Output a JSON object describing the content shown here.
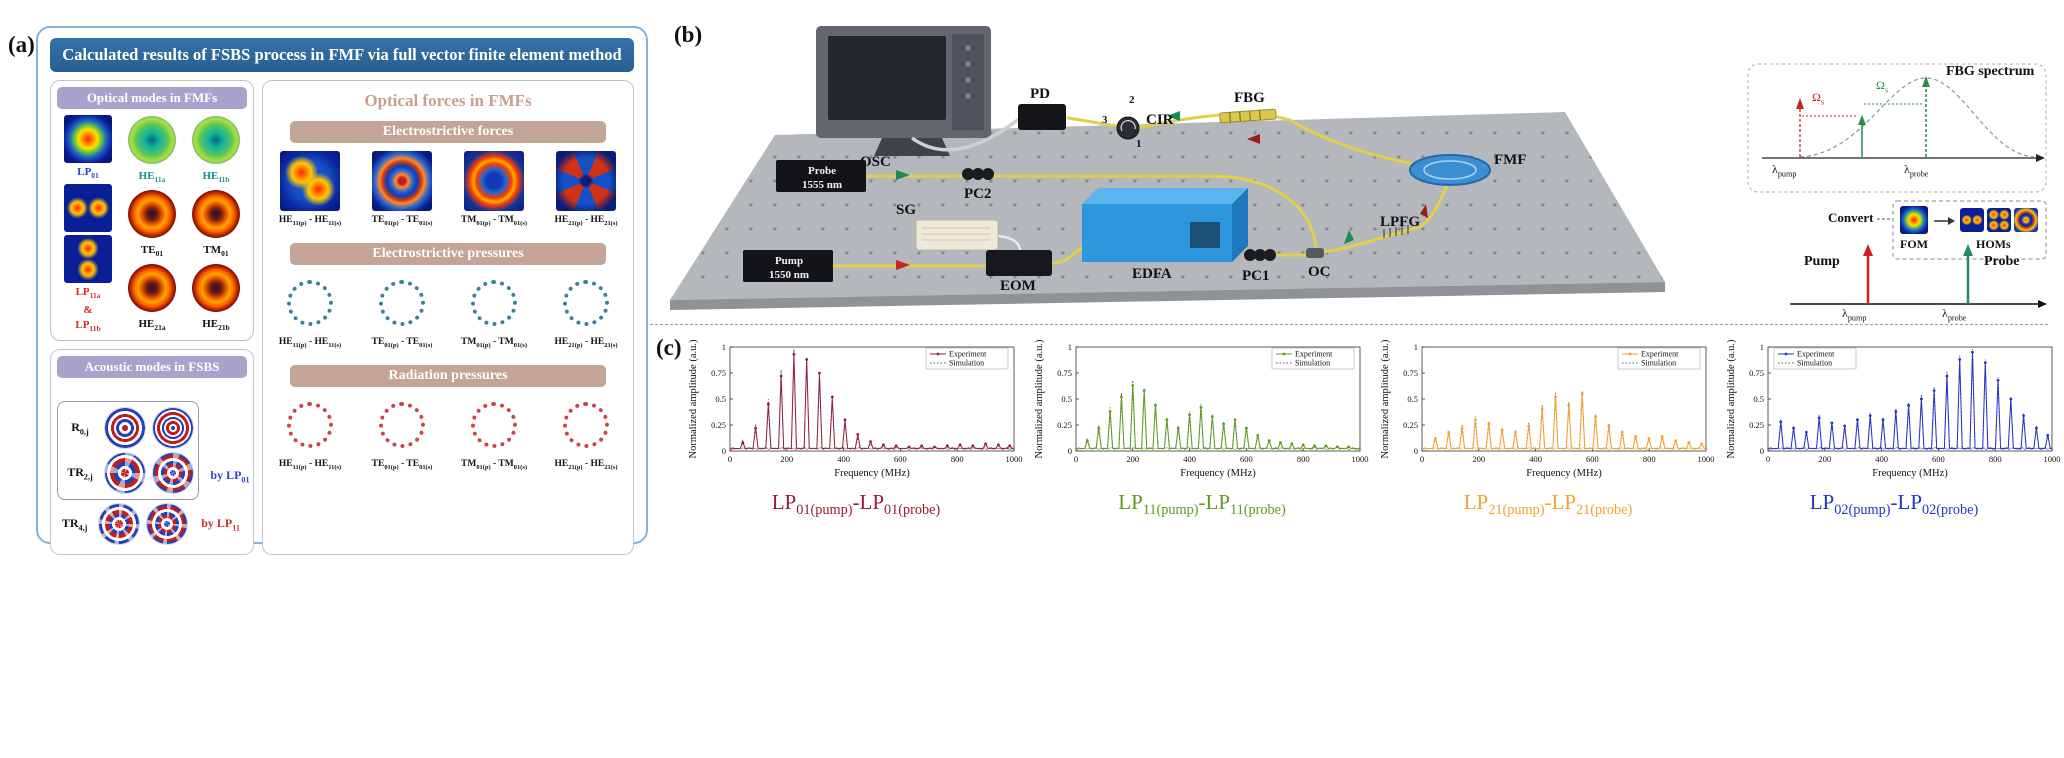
{
  "panel_a": {
    "label": "(a)",
    "title": "Calculated results of FSBS process in FMF via full vector finite element method",
    "optical_modes": {
      "header": "Optical modes in FMFs",
      "lp01": "LP~01~",
      "he11a": "HE~11a~",
      "he11b": "HE~11b~",
      "lp11a": "LP~11a~",
      "amp": "&",
      "lp11b": "LP~11b~",
      "te01": "TE~01~",
      "tm01": "TM~01~",
      "he21a": "HE~21a~",
      "he21b": "HE~21b~"
    },
    "acoustic_modes": {
      "header": "Acoustic modes in FSBS",
      "r0": "R~0,j~",
      "tr2": "TR~2,j~",
      "tr4": "TR~4,j~",
      "by_lp01": "by LP~01~",
      "by_lp11": "by LP~11~"
    },
    "optical_forces": {
      "header": "Optical forces in FMFs",
      "sections": [
        {
          "title": "Electrostrictive forces",
          "items": [
            "HE~11(p)~ - HE~11(s)~",
            "TE~01(p)~ - TE~01(s)~",
            "TM~01(p)~ - TM~01(s)~",
            "HE~21(p)~ - HE~21(s)~"
          ]
        },
        {
          "title": "Electrostrictive pressures",
          "items": [
            "HE~11(p)~ - HE~11(s)~",
            "TE~01(p)~ - TE~01(s)~",
            "TM~01(p)~ - TM~01(s)~",
            "HE~21(p)~ - HE~21(s)~"
          ]
        },
        {
          "title": "Radiation pressures",
          "items": [
            "HE~11(p)~ - HE~11(s)~",
            "TE~01(p)~ - TE~01(s)~",
            "TM~01(p)~ - TM~01(s)~",
            "HE~21(p)~ - HE~21(s)~"
          ]
        }
      ]
    }
  },
  "panel_b": {
    "label": "(b)",
    "components": {
      "osc": "OSC",
      "pd": "PD",
      "cir": "CIR",
      "fbg": "FBG",
      "fmf": "FMF",
      "probe": "Probe",
      "probe_wl": "1555 nm",
      "pc2": "PC2",
      "sg": "SG",
      "eom": "EOM",
      "edfa": "EDFA",
      "pc1": "PC1",
      "oc": "OC",
      "lpfg": "LPFG",
      "pump": "Pump",
      "pump_wl": "1550 nm",
      "cir_ports": {
        "p1": "1",
        "p2": "2",
        "p3": "3"
      }
    },
    "fbg_inset": {
      "title": "FBG spectrum",
      "omega1": "Ω~s~",
      "omega2": "Ω~s~",
      "lambda_pump": "λ~pump~",
      "lambda_probe": "λ~probe~"
    },
    "convert_inset": {
      "convert": "Convert",
      "fom": "FOM",
      "homs": "HOMs"
    },
    "axis_inset": {
      "pump": "Pump",
      "probe": "Probe",
      "lambda_pump": "λ~pump~",
      "lambda_probe": "λ~probe~"
    }
  },
  "panel_c": {
    "label": "(c)",
    "captions": [
      "LP~01(pump)~-LP~01(probe)~",
      "LP~11(pump)~-LP~11(probe)~",
      "LP~21(pump)~-LP~21(probe)~",
      "LP~02(pump)~-LP~02(probe)~"
    ],
    "caption_colors": [
      "#9b1b30",
      "#5f9a1e",
      "#f0a330",
      "#2433c8"
    ]
  },
  "chart_data": [
    {
      "type": "line",
      "title": "LP01(pump)-LP01(probe)",
      "xlabel": "Frequency (MHz)",
      "ylabel": "Normalized amplitude (a.u.)",
      "xlim": [
        0,
        1000
      ],
      "ylim": [
        0,
        1
      ],
      "xticks": [
        0,
        200,
        400,
        600,
        800,
        1000
      ],
      "yticks": [
        0,
        0.25,
        0.5,
        0.75,
        1
      ],
      "legend": [
        "Experiment",
        "Simulation"
      ],
      "legend_pos": "right",
      "color": "#8e2439",
      "sim_color": "#50506e",
      "series": [
        {
          "name": "Experiment",
          "peaks": [
            [
              45,
              0.08
            ],
            [
              90,
              0.22
            ],
            [
              135,
              0.45
            ],
            [
              180,
              0.72
            ],
            [
              225,
              0.93
            ],
            [
              270,
              0.88
            ],
            [
              315,
              0.75
            ],
            [
              360,
              0.52
            ],
            [
              405,
              0.3
            ],
            [
              450,
              0.16
            ],
            [
              495,
              0.09
            ],
            [
              540,
              0.06
            ],
            [
              585,
              0.05
            ],
            [
              630,
              0.04
            ],
            [
              675,
              0.05
            ],
            [
              720,
              0.04
            ],
            [
              765,
              0.05
            ],
            [
              810,
              0.06
            ],
            [
              855,
              0.05
            ],
            [
              900,
              0.07
            ],
            [
              945,
              0.06
            ],
            [
              985,
              0.05
            ]
          ]
        },
        {
          "name": "Simulation",
          "peaks": [
            [
              45,
              0.1
            ],
            [
              90,
              0.26
            ],
            [
              135,
              0.5
            ],
            [
              180,
              0.78
            ],
            [
              225,
              0.98
            ],
            [
              270,
              0.9
            ],
            [
              315,
              0.7
            ],
            [
              360,
              0.47
            ],
            [
              405,
              0.27
            ],
            [
              450,
              0.13
            ],
            [
              495,
              0.07
            ],
            [
              540,
              0.05
            ],
            [
              585,
              0.04
            ],
            [
              630,
              0.04
            ],
            [
              675,
              0.04
            ],
            [
              720,
              0.04
            ],
            [
              765,
              0.04
            ],
            [
              810,
              0.05
            ],
            [
              855,
              0.04
            ],
            [
              900,
              0.06
            ],
            [
              945,
              0.05
            ]
          ]
        }
      ]
    },
    {
      "type": "line",
      "title": "LP11(pump)-LP11(probe)",
      "xlabel": "Frequency (MHz)",
      "ylabel": "Normalized amplitude (a.u.)",
      "xlim": [
        0,
        1000
      ],
      "ylim": [
        0,
        1
      ],
      "xticks": [
        0,
        200,
        400,
        600,
        800,
        1000
      ],
      "yticks": [
        0,
        0.25,
        0.5,
        0.75,
        1
      ],
      "legend": [
        "Experiment",
        "Simulation"
      ],
      "legend_pos": "right",
      "color": "#5f9a1e",
      "sim_color": "#50506e",
      "series": [
        {
          "name": "Experiment",
          "peaks": [
            [
              40,
              0.1
            ],
            [
              80,
              0.22
            ],
            [
              120,
              0.38
            ],
            [
              160,
              0.52
            ],
            [
              200,
              0.63
            ],
            [
              240,
              0.58
            ],
            [
              280,
              0.44
            ],
            [
              320,
              0.3
            ],
            [
              360,
              0.22
            ],
            [
              400,
              0.35
            ],
            [
              440,
              0.42
            ],
            [
              480,
              0.33
            ],
            [
              520,
              0.26
            ],
            [
              560,
              0.3
            ],
            [
              600,
              0.22
            ],
            [
              640,
              0.15
            ],
            [
              680,
              0.1
            ],
            [
              720,
              0.08
            ],
            [
              760,
              0.07
            ],
            [
              800,
              0.06
            ],
            [
              840,
              0.05
            ],
            [
              880,
              0.05
            ],
            [
              920,
              0.04
            ],
            [
              960,
              0.04
            ]
          ]
        },
        {
          "name": "Simulation",
          "peaks": [
            [
              40,
              0.12
            ],
            [
              80,
              0.25
            ],
            [
              120,
              0.42
            ],
            [
              160,
              0.56
            ],
            [
              200,
              0.68
            ],
            [
              240,
              0.6
            ],
            [
              280,
              0.46
            ],
            [
              320,
              0.32
            ],
            [
              360,
              0.24
            ],
            [
              400,
              0.38
            ],
            [
              440,
              0.45
            ],
            [
              480,
              0.35
            ],
            [
              520,
              0.28
            ],
            [
              560,
              0.32
            ],
            [
              600,
              0.24
            ],
            [
              640,
              0.16
            ],
            [
              680,
              0.11
            ],
            [
              720,
              0.09
            ],
            [
              760,
              0.07
            ],
            [
              800,
              0.06
            ],
            [
              840,
              0.05
            ],
            [
              880,
              0.05
            ],
            [
              920,
              0.04
            ],
            [
              960,
              0.04
            ]
          ]
        }
      ]
    },
    {
      "type": "line",
      "title": "LP21(pump)-LP21(probe)",
      "xlabel": "Frequency (MHz)",
      "ylabel": "Normalized amplitude (a.u.)",
      "xlim": [
        0,
        1000
      ],
      "ylim": [
        0,
        1
      ],
      "xticks": [
        0,
        200,
        400,
        600,
        800,
        1000
      ],
      "yticks": [
        0,
        0.25,
        0.5,
        0.75,
        1
      ],
      "legend": [
        "Experiment",
        "Simulation"
      ],
      "legend_pos": "right",
      "color": "#f0a330",
      "sim_color": "#50506e",
      "series": [
        {
          "name": "Experiment",
          "peaks": [
            [
              47,
              0.12
            ],
            [
              94,
              0.18
            ],
            [
              141,
              0.22
            ],
            [
              188,
              0.3
            ],
            [
              235,
              0.26
            ],
            [
              282,
              0.2
            ],
            [
              329,
              0.18
            ],
            [
              376,
              0.24
            ],
            [
              423,
              0.4
            ],
            [
              470,
              0.52
            ],
            [
              517,
              0.44
            ],
            [
              564,
              0.55
            ],
            [
              611,
              0.33
            ],
            [
              658,
              0.24
            ],
            [
              705,
              0.18
            ],
            [
              752,
              0.14
            ],
            [
              799,
              0.12
            ],
            [
              846,
              0.14
            ],
            [
              893,
              0.1
            ],
            [
              940,
              0.08
            ],
            [
              985,
              0.07
            ]
          ]
        },
        {
          "name": "Simulation",
          "peaks": [
            [
              47,
              0.14
            ],
            [
              94,
              0.2
            ],
            [
              141,
              0.25
            ],
            [
              188,
              0.33
            ],
            [
              235,
              0.28
            ],
            [
              282,
              0.22
            ],
            [
              329,
              0.2
            ],
            [
              376,
              0.27
            ],
            [
              423,
              0.44
            ],
            [
              470,
              0.56
            ],
            [
              517,
              0.47
            ],
            [
              564,
              0.58
            ],
            [
              611,
              0.35
            ],
            [
              658,
              0.26
            ],
            [
              705,
              0.2
            ],
            [
              752,
              0.15
            ],
            [
              799,
              0.13
            ],
            [
              846,
              0.15
            ],
            [
              893,
              0.11
            ],
            [
              940,
              0.09
            ],
            [
              985,
              0.07
            ]
          ]
        }
      ]
    },
    {
      "type": "line",
      "title": "LP02(pump)-LP02(probe)",
      "xlabel": "Frequency (MHz)",
      "ylabel": "Normalized amplitude (a.u.)",
      "xlim": [
        0,
        1000
      ],
      "ylim": [
        0,
        1
      ],
      "xticks": [
        0,
        200,
        400,
        600,
        800,
        1000
      ],
      "yticks": [
        0,
        0.25,
        0.5,
        0.75,
        1
      ],
      "legend": [
        "Experiment",
        "Simulation"
      ],
      "legend_pos": "left",
      "color": "#2433c8",
      "sim_color": "#50506e",
      "series": [
        {
          "name": "Experiment",
          "peaks": [
            [
              45,
              0.28
            ],
            [
              90,
              0.22
            ],
            [
              135,
              0.18
            ],
            [
              180,
              0.32
            ],
            [
              225,
              0.27
            ],
            [
              270,
              0.24
            ],
            [
              315,
              0.3
            ],
            [
              360,
              0.34
            ],
            [
              405,
              0.3
            ],
            [
              450,
              0.38
            ],
            [
              495,
              0.44
            ],
            [
              540,
              0.5
            ],
            [
              585,
              0.58
            ],
            [
              630,
              0.72
            ],
            [
              675,
              0.88
            ],
            [
              720,
              0.95
            ],
            [
              765,
              0.85
            ],
            [
              810,
              0.68
            ],
            [
              855,
              0.5
            ],
            [
              900,
              0.34
            ],
            [
              945,
              0.22
            ],
            [
              985,
              0.15
            ]
          ]
        },
        {
          "name": "Simulation",
          "peaks": [
            [
              45,
              0.3
            ],
            [
              90,
              0.24
            ],
            [
              135,
              0.2
            ],
            [
              180,
              0.35
            ],
            [
              225,
              0.29
            ],
            [
              270,
              0.26
            ],
            [
              315,
              0.32
            ],
            [
              360,
              0.37
            ],
            [
              405,
              0.32
            ],
            [
              450,
              0.41
            ],
            [
              495,
              0.47
            ],
            [
              540,
              0.54
            ],
            [
              585,
              0.62
            ],
            [
              630,
              0.76
            ],
            [
              675,
              0.92
            ],
            [
              720,
              0.98
            ],
            [
              765,
              0.88
            ],
            [
              810,
              0.71
            ],
            [
              855,
              0.52
            ],
            [
              900,
              0.36
            ],
            [
              945,
              0.24
            ],
            [
              985,
              0.16
            ]
          ]
        }
      ]
    }
  ]
}
